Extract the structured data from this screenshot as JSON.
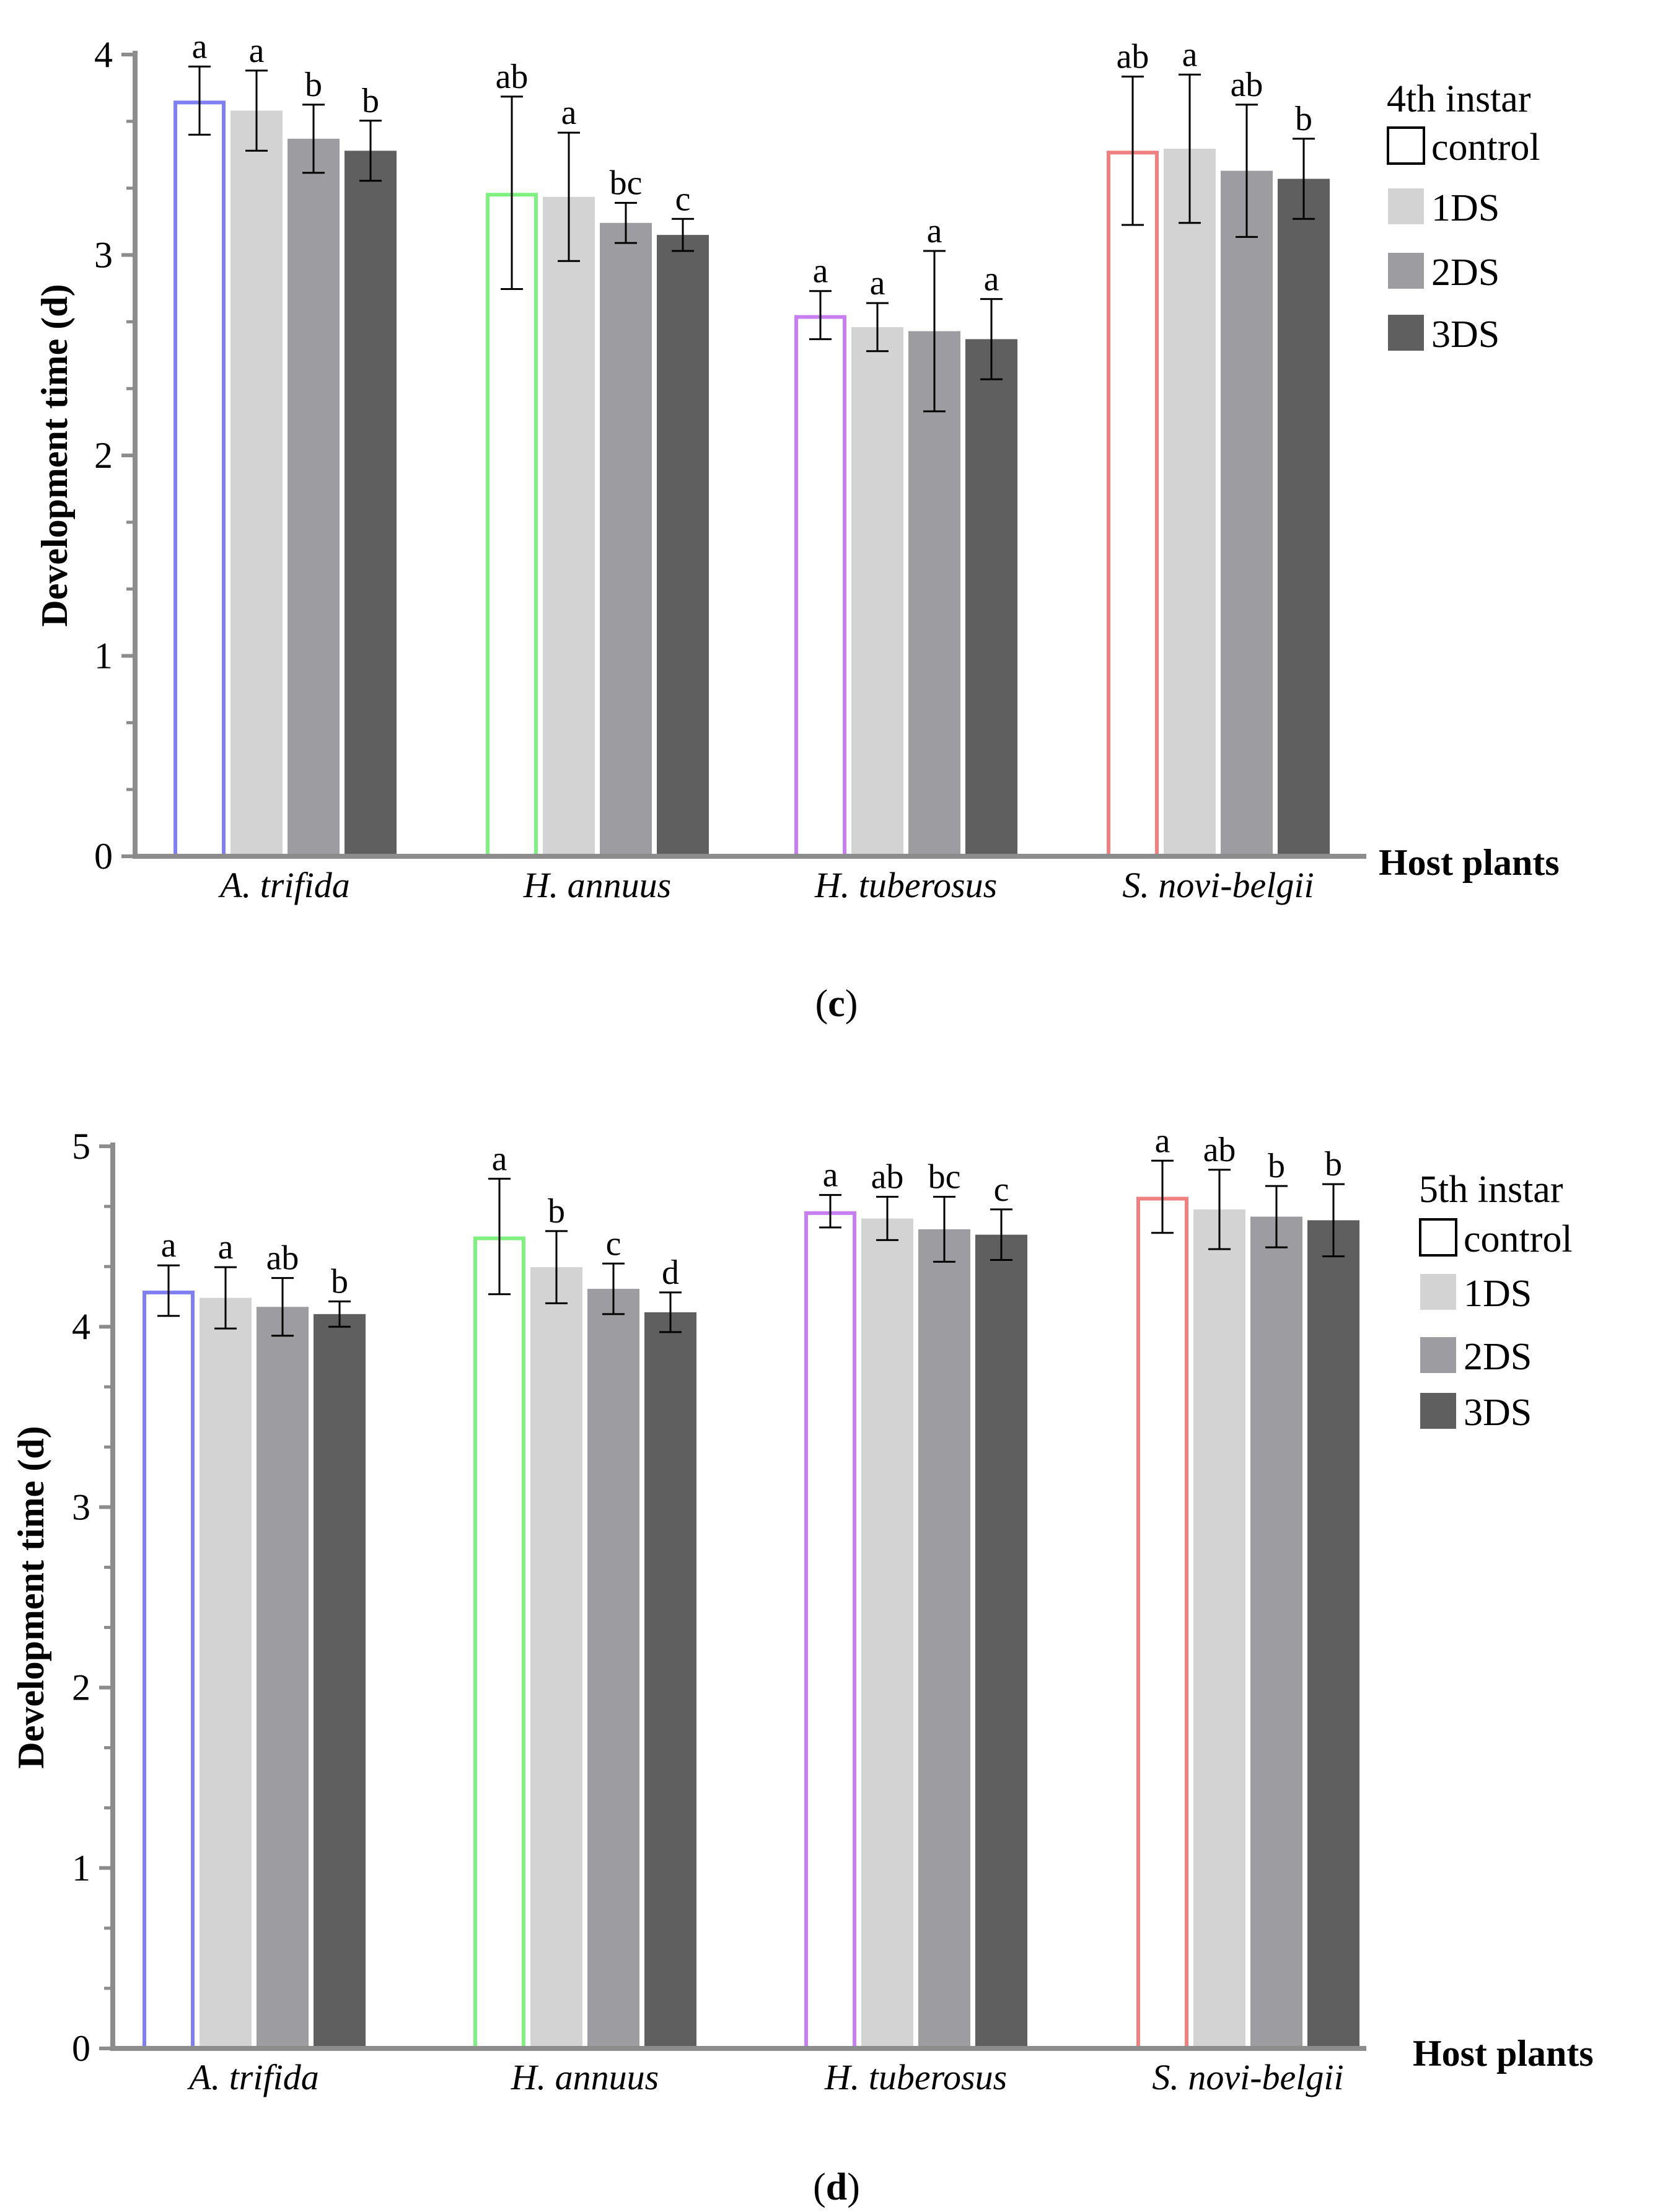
{
  "chart_data": [
    {
      "type": "bar",
      "panel_label": "c",
      "categories": [
        "A. trifida",
        "H. annuus",
        "H. tuberosus",
        "S. novi-belgii"
      ],
      "series": [
        {
          "name": "control",
          "values": [
            3.77,
            3.31,
            2.7,
            3.52
          ]
        },
        {
          "name": "1DS",
          "values": [
            3.72,
            3.29,
            2.64,
            3.53
          ]
        },
        {
          "name": "2DS",
          "values": [
            3.58,
            3.16,
            2.62,
            3.42
          ]
        },
        {
          "name": "3DS",
          "values": [
            3.52,
            3.1,
            2.58,
            3.38
          ]
        }
      ],
      "errors": [
        [
          0.17,
          0.48,
          0.12,
          0.37
        ],
        [
          0.2,
          0.32,
          0.12,
          0.37
        ],
        [
          0.17,
          0.1,
          0.4,
          0.33
        ],
        [
          0.15,
          0.08,
          0.2,
          0.2
        ]
      ],
      "letters": [
        [
          "a",
          "ab",
          "a",
          "ab"
        ],
        [
          "a",
          "a",
          "a",
          "a"
        ],
        [
          "b",
          "bc",
          "a",
          "ab"
        ],
        [
          "b",
          "c",
          "a",
          "b"
        ]
      ],
      "xlabel": "Host plants",
      "ylabel": "Development time (d)",
      "ylim": [
        0,
        4
      ],
      "yticks": [
        0,
        1,
        2,
        3,
        4
      ],
      "legend_title": "4th instar",
      "legend_position": "top-right",
      "grid": false
    },
    {
      "type": "bar",
      "panel_label": "d",
      "categories": [
        "A. trifida",
        "H. annuus",
        "H. tuberosus",
        "S. novi-belgii"
      ],
      "series": [
        {
          "name": "control",
          "values": [
            4.2,
            4.5,
            4.64,
            4.72
          ]
        },
        {
          "name": "1DS",
          "values": [
            4.16,
            4.33,
            4.6,
            4.65
          ]
        },
        {
          "name": "2DS",
          "values": [
            4.11,
            4.21,
            4.54,
            4.61
          ]
        },
        {
          "name": "3DS",
          "values": [
            4.07,
            4.08,
            4.51,
            4.59
          ]
        }
      ],
      "errors": [
        [
          0.14,
          0.32,
          0.09,
          0.2
        ],
        [
          0.17,
          0.2,
          0.12,
          0.22
        ],
        [
          0.16,
          0.14,
          0.18,
          0.17
        ],
        [
          0.07,
          0.11,
          0.14,
          0.2
        ]
      ],
      "letters": [
        [
          "a",
          "a",
          "a",
          "a"
        ],
        [
          "a",
          "b",
          "ab",
          "ab"
        ],
        [
          "ab",
          "c",
          "bc",
          "b"
        ],
        [
          "b",
          "d",
          "c",
          "b"
        ]
      ],
      "xlabel": "Host plants",
      "ylabel": "Development time (d)",
      "ylim": [
        0,
        5
      ],
      "yticks": [
        0,
        1,
        2,
        3,
        4,
        5
      ],
      "legend_title": "5th instar",
      "legend_position": "top-right",
      "grid": false
    }
  ],
  "colors": {
    "axis": "#8c8c8c",
    "control_outlines": [
      "#7f7ff2",
      "#80f080",
      "#c77ef0",
      "#f07f7f"
    ],
    "series_fills": [
      "#ffffff",
      "#d3d3d3",
      "#9d9ca1",
      "#5f5f5f"
    ],
    "error_bar": "#000000"
  },
  "icons": {
    "legend_swatch": "square-swatch-icon"
  }
}
